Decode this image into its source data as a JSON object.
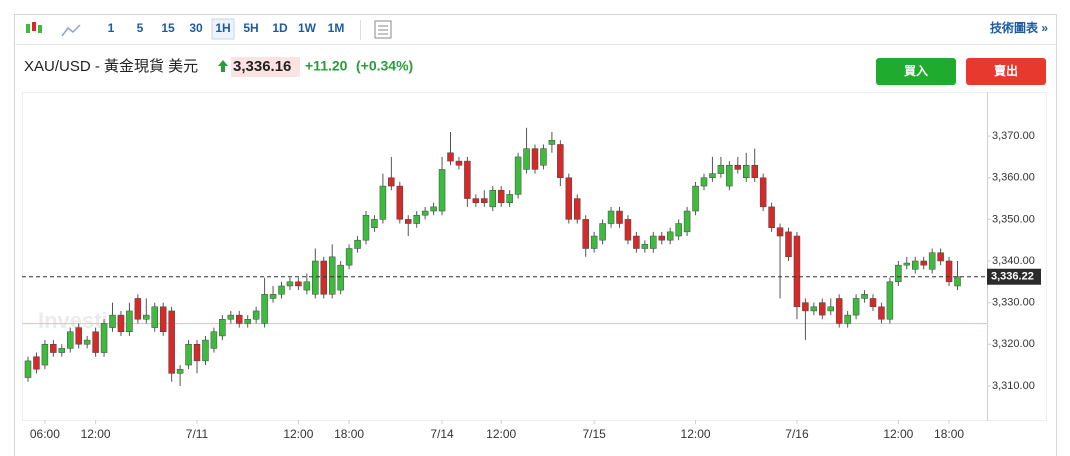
{
  "toolbar": {
    "intervals": [
      "1",
      "5",
      "15",
      "30",
      "1H",
      "5H",
      "1D",
      "1W",
      "1M"
    ],
    "active": "1H",
    "link": "技術圖表 »"
  },
  "header": {
    "symbol": "XAU/USD - 黃金現貨 美元",
    "price": "3,336.16",
    "change": "+11.20",
    "change_pct": "(+0.34%)"
  },
  "buttons": {
    "buy": "買入",
    "sell": "賣出"
  },
  "watermark": "Investing",
  "chart_data": {
    "type": "candlestick",
    "up_color": "#3dbb3d",
    "down_color": "#d42a2a",
    "x": [
      null,
      null,
      "06:00",
      null,
      null,
      null,
      null,
      null,
      "12:00",
      null,
      null,
      null,
      null,
      null,
      null,
      null,
      null,
      null,
      null,
      null,
      "7/11",
      null,
      null,
      null,
      null,
      null,
      null,
      null,
      null,
      null,
      null,
      null,
      "12:00",
      null,
      null,
      null,
      null,
      null,
      "18:00",
      null,
      null,
      null,
      null,
      null,
      null,
      null,
      null,
      null,
      null,
      "7/14",
      null,
      null,
      null,
      null,
      null,
      null,
      "12:00",
      null,
      null,
      null,
      null,
      null,
      null,
      null,
      null,
      null,
      null,
      "7/15",
      null,
      null,
      null,
      null,
      null,
      null,
      null,
      null,
      null,
      null,
      null,
      "12:00",
      null,
      null,
      null,
      null,
      null,
      null,
      null,
      null,
      null,
      null,
      null,
      "7/16",
      null,
      null,
      null,
      null,
      null,
      null,
      null,
      null,
      null,
      null,
      null,
      "12:00",
      null,
      null,
      null,
      null,
      null,
      "18:00",
      null
    ],
    "open": [
      3312,
      3317,
      3315,
      3320,
      3318,
      3319,
      3324,
      3320,
      3323,
      3318,
      3324,
      3327,
      3323,
      3331,
      3326,
      3324,
      3329,
      3328,
      3313,
      3315,
      3320,
      3316,
      3319,
      3322,
      3326,
      3327,
      3325,
      3326,
      3325,
      3331,
      3332,
      3334,
      3335,
      3333,
      3332,
      3340,
      3332,
      3333,
      3339,
      3343,
      3345,
      3348,
      3350,
      3360,
      3358,
      3350,
      3349,
      3351,
      3352,
      3352,
      3366,
      3364,
      3364,
      3355,
      3355,
      3353,
      3357,
      3354,
      3356,
      3362,
      3367,
      3363,
      3368,
      3368,
      3360,
      3355,
      3350,
      3343,
      3345,
      3349,
      3352,
      3350,
      3346,
      3343,
      3343,
      3346,
      3345,
      3346,
      3347,
      3352,
      3358,
      3360,
      3361,
      3358,
      3363,
      3360,
      3363,
      3360,
      3353,
      3348,
      3347,
      3346,
      3330,
      3328,
      3330,
      3328,
      3331,
      3325,
      3327,
      3331,
      3331,
      3329,
      3326,
      3335,
      3339,
      3338,
      3340,
      3338,
      3342,
      3340,
      3334
    ],
    "high": [
      3317,
      3318,
      3321,
      3321,
      3320,
      3324,
      3325,
      3322,
      3324,
      3326,
      3330,
      3328,
      3330,
      3332,
      3331,
      3330,
      3330,
      3329,
      3315,
      3321,
      3321,
      3322,
      3324,
      3327,
      3328,
      3328,
      3327,
      3329,
      3336,
      3334,
      3335,
      3336,
      3336,
      3337,
      3343,
      3341,
      3344,
      3340,
      3344,
      3346,
      3352,
      3351,
      3361,
      3365,
      3359,
      3351,
      3352,
      3353,
      3354,
      3365,
      3371,
      3365,
      3365,
      3356,
      3357,
      3358,
      3358,
      3357,
      3366,
      3372,
      3368,
      3368,
      3371,
      3369,
      3361,
      3356,
      3351,
      3347,
      3350,
      3353,
      3353,
      3351,
      3347,
      3345,
      3347,
      3347,
      3348,
      3350,
      3353,
      3359,
      3361,
      3365,
      3365,
      3364,
      3365,
      3366,
      3367,
      3361,
      3354,
      3349,
      3348,
      3347,
      3331,
      3330,
      3331,
      3331,
      3332,
      3328,
      3332,
      3333,
      3332,
      3330,
      3336,
      3340,
      3341,
      3341,
      3341,
      3343,
      3343,
      3341,
      3340
    ],
    "low": [
      3311,
      3313,
      3314,
      3317,
      3317,
      3318,
      3319,
      3319,
      3317,
      3317,
      3323,
      3322,
      3322,
      3325,
      3325,
      3323,
      3322,
      3311,
      3310,
      3314,
      3313,
      3315,
      3318,
      3321,
      3325,
      3324,
      3324,
      3325,
      3324,
      3330,
      3331,
      3333,
      3333,
      3332,
      3331,
      3331,
      3331,
      3332,
      3338,
      3342,
      3344,
      3347,
      3349,
      3357,
      3349,
      3346,
      3348,
      3350,
      3351,
      3351,
      3363,
      3362,
      3353,
      3353,
      3353,
      3352,
      3353,
      3353,
      3355,
      3361,
      3361,
      3362,
      3366,
      3358,
      3349,
      3349,
      3341,
      3342,
      3344,
      3348,
      3348,
      3344,
      3342,
      3342,
      3342,
      3344,
      3344,
      3345,
      3346,
      3351,
      3357,
      3359,
      3360,
      3357,
      3361,
      3359,
      3359,
      3352,
      3347,
      3331,
      3340,
      3326,
      3321,
      3327,
      3326,
      3327,
      3324,
      3324,
      3326,
      3330,
      3328,
      3325,
      3325,
      3334,
      3338,
      3337,
      3338,
      3337,
      3339,
      3334,
      3333
    ],
    "close": [
      3316,
      3314,
      3320,
      3318,
      3319,
      3323,
      3320,
      3321,
      3318,
      3325,
      3327,
      3323,
      3328,
      3326,
      3327,
      3329,
      3323,
      3313,
      3314,
      3320,
      3316,
      3321,
      3323,
      3326,
      3327,
      3325,
      3326,
      3328,
      3332,
      3332,
      3334,
      3335,
      3334,
      3335,
      3340,
      3332,
      3341,
      3339,
      3343,
      3345,
      3351,
      3350,
      3358,
      3358,
      3350,
      3349,
      3351,
      3352,
      3353,
      3362,
      3364,
      3363,
      3355,
      3354,
      3354,
      3357,
      3354,
      3356,
      3365,
      3367,
      3362,
      3367,
      3369,
      3360,
      3350,
      3350,
      3343,
      3346,
      3349,
      3352,
      3349,
      3345,
      3343,
      3344,
      3346,
      3345,
      3347,
      3349,
      3352,
      3358,
      3360,
      3361,
      3363,
      3363,
      3362,
      3363,
      3360,
      3353,
      3348,
      3346,
      3341,
      3329,
      3328,
      3329,
      3327,
      3329,
      3325,
      3327,
      3331,
      3332,
      3329,
      3326,
      3335,
      3339,
      3339.5,
      3340,
      3339,
      3342,
      3340,
      3335,
      3336.22
    ],
    "ylim": [
      3301.8,
      3380.6
    ],
    "yticks": [
      {
        "value": 3310,
        "label": "3,310.00"
      },
      {
        "value": 3320,
        "label": "3,320.00"
      },
      {
        "value": 3330,
        "label": "3,330.00"
      },
      {
        "value": 3340,
        "label": "3,340.00"
      },
      {
        "value": 3350,
        "label": "3,350.00"
      },
      {
        "value": 3360,
        "label": "3,360.00"
      },
      {
        "value": 3370,
        "label": "3,370.00"
      }
    ],
    "last_price": {
      "value": 3336.22,
      "label": "3,336.22"
    },
    "reference_line": 3324.96
  }
}
